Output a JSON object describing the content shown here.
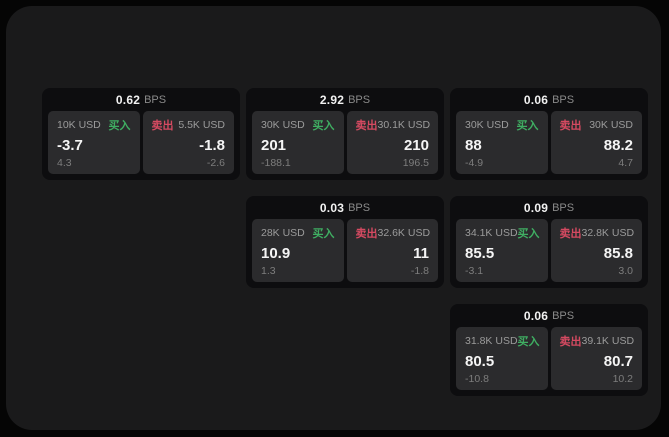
{
  "colors": {
    "page_bg": "#050505",
    "frame_bg": "#1a1a1b",
    "card_bg": "#0d0d0f",
    "panel_bg": "#2b2b2d",
    "buy_green": "#3fae62",
    "sell_red": "#d54a61"
  },
  "cards": [
    {
      "spread": "0.62",
      "unit": "BPS",
      "buy": {
        "notional": "10K USD",
        "label": "买入",
        "price": "-3.7",
        "delta": "4.3"
      },
      "sell": {
        "label": "卖出",
        "notional": "5.5K USD",
        "price": "-1.8",
        "delta": "-2.6"
      }
    },
    {
      "spread": "2.92",
      "unit": "BPS",
      "buy": {
        "notional": "30K USD",
        "label": "买入",
        "price": "201",
        "delta": "-188.1"
      },
      "sell": {
        "label": "卖出",
        "notional": "30.1K USD",
        "price": "210",
        "delta": "196.5"
      }
    },
    {
      "spread": "0.06",
      "unit": "BPS",
      "buy": {
        "notional": "30K USD",
        "label": "买入",
        "price": "88",
        "delta": "-4.9"
      },
      "sell": {
        "label": "卖出",
        "notional": "30K USD",
        "price": "88.2",
        "delta": "4.7"
      }
    },
    {
      "spread": "0.03",
      "unit": "BPS",
      "buy": {
        "notional": "28K USD",
        "label": "买入",
        "price": "10.9",
        "delta": "1.3"
      },
      "sell": {
        "label": "卖出",
        "notional": "32.6K USD",
        "price": "11",
        "delta": "-1.8"
      }
    },
    {
      "spread": "0.09",
      "unit": "BPS",
      "buy": {
        "notional": "34.1K USD",
        "label": "买入",
        "price": "85.5",
        "delta": "-3.1"
      },
      "sell": {
        "label": "卖出",
        "notional": "32.8K USD",
        "price": "85.8",
        "delta": "3.0"
      }
    },
    {
      "spread": "0.06",
      "unit": "BPS",
      "buy": {
        "notional": "31.8K USD",
        "label": "买入",
        "price": "80.5",
        "delta": "-10.8"
      },
      "sell": {
        "label": "卖出",
        "notional": "39.1K USD",
        "price": "80.7",
        "delta": "10.2"
      }
    }
  ]
}
